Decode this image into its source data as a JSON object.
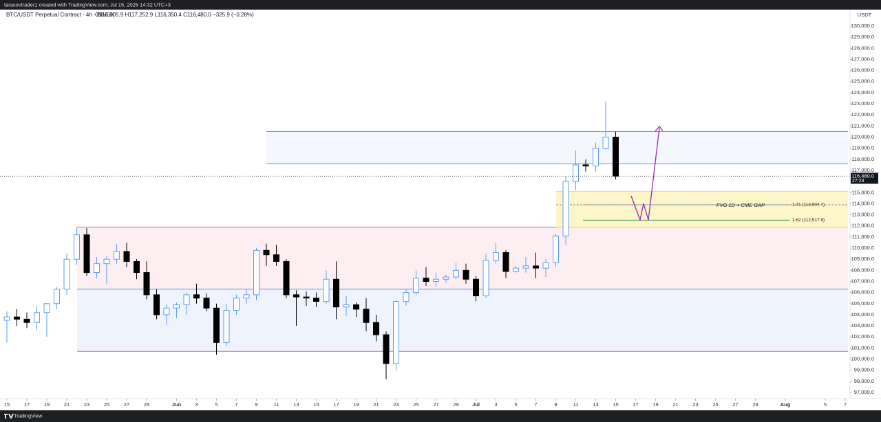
{
  "header": {
    "credit": "tarasovtrader1 created with TradingView.com, Jul 15, 2025 14:32 UTC+3",
    "brand": "TradingView"
  },
  "chart_data": {
    "type": "candlestick",
    "title": "BTC/USDT Perpetual Contract · 4h · BINGX",
    "subtitle": "O116,805.9 H117,252.9 L116,350.4 C116,480.0 −325.9 (−0.28%)",
    "y_unit": "USDT",
    "up_color": "#5b9cf6",
    "down_color": "#000000",
    "x": [
      "May 15",
      "May 16",
      "May 17",
      "May 18",
      "May 19",
      "May 20",
      "May 21",
      "May 22",
      "May 23",
      "May 24",
      "May 25",
      "May 26",
      "May 27",
      "May 28",
      "May 29",
      "May 30",
      "May 31",
      "Jun 1",
      "Jun 2",
      "Jun 3",
      "Jun 4",
      "Jun 5",
      "Jun 6",
      "Jun 7",
      "Jun 8",
      "Jun 9",
      "Jun 10",
      "Jun 11",
      "Jun 12",
      "Jun 13",
      "Jun 14",
      "Jun 15",
      "Jun 16",
      "Jun 17",
      "Jun 18",
      "Jun 19",
      "Jun 20",
      "Jun 21",
      "Jun 22",
      "Jun 23",
      "Jun 24",
      "Jun 25",
      "Jun 26",
      "Jun 27",
      "Jun 28",
      "Jun 29",
      "Jun 30",
      "Jul 1",
      "Jul 2",
      "Jul 3",
      "Jul 4",
      "Jul 5",
      "Jul 6",
      "Jul 7",
      "Jul 8",
      "Jul 9",
      "Jul 10",
      "Jul 11",
      "Jul 12",
      "Jul 13",
      "Jul 14",
      "Jul 15"
    ],
    "open": [
      103500,
      103800,
      103600,
      103300,
      104200,
      105000,
      106300,
      109000,
      111200,
      107800,
      108600,
      109000,
      109700,
      108800,
      107800,
      105800,
      104000,
      104600,
      104900,
      105800,
      105500,
      104600,
      101500,
      104400,
      105500,
      105800,
      109800,
      109400,
      108800,
      105800,
      105600,
      105500,
      105200,
      107200,
      104700,
      104900,
      104500,
      103300,
      102200,
      99600,
      105200,
      106000,
      107300,
      107000,
      107200,
      107400,
      108000,
      107200,
      105700,
      108900,
      109600,
      107900,
      108200,
      108400,
      108200,
      108700,
      111100,
      116000,
      117500,
      117400,
      119000,
      120000
    ],
    "high": [
      104300,
      104500,
      104200,
      104800,
      105000,
      106500,
      109500,
      111900,
      111800,
      109200,
      109300,
      110400,
      110500,
      109000,
      108800,
      106300,
      104900,
      105100,
      106000,
      106800,
      105900,
      105000,
      105000,
      105800,
      106300,
      110000,
      110400,
      110300,
      109000,
      106200,
      106100,
      106000,
      108000,
      108800,
      105700,
      105100,
      105500,
      104000,
      102500,
      105300,
      106300,
      108000,
      108300,
      107800,
      107600,
      108700,
      108600,
      107500,
      109500,
      110500,
      109800,
      108400,
      109200,
      109600,
      109000,
      111300,
      116500,
      118800,
      118000,
      119500,
      123200,
      120500
    ],
    "low": [
      101500,
      103000,
      102800,
      102600,
      102000,
      104500,
      105800,
      108500,
      107500,
      107300,
      106800,
      108600,
      108300,
      107200,
      105400,
      103600,
      103100,
      103700,
      104000,
      105000,
      104300,
      100400,
      101200,
      104000,
      105000,
      105300,
      108400,
      108400,
      105500,
      103000,
      104800,
      104700,
      105000,
      103600,
      103900,
      103800,
      102500,
      101600,
      98200,
      99000,
      104800,
      105800,
      106600,
      106500,
      106900,
      107200,
      106800,
      105200,
      105500,
      108600,
      107300,
      107800,
      107800,
      107300,
      107400,
      108300,
      110300,
      115200,
      116900,
      116900,
      118900,
      116200
    ],
    "close": [
      103800,
      103600,
      103300,
      104200,
      105000,
      106300,
      109000,
      111200,
      107800,
      108600,
      109000,
      109700,
      108800,
      107800,
      105800,
      104000,
      104600,
      104900,
      105800,
      105500,
      104600,
      101500,
      104400,
      105500,
      105800,
      109800,
      109400,
      108800,
      105800,
      105600,
      105500,
      105200,
      107200,
      104700,
      104900,
      104500,
      103300,
      102200,
      99600,
      105200,
      106000,
      107300,
      107000,
      107200,
      107400,
      108000,
      107200,
      105700,
      108900,
      109600,
      107900,
      108200,
      108400,
      108200,
      108700,
      111100,
      116000,
      117500,
      117400,
      119000,
      120000,
      116480
    ],
    "last_price": {
      "value": 116480,
      "label": "116,480.0"
    },
    "countdown": "27:23",
    "ylim": [
      96443,
      131486
    ],
    "yticks": [
      {
        "value": 97000,
        "label": "97,000.0"
      },
      {
        "value": 98000,
        "label": "98,000.0"
      },
      {
        "value": 99000,
        "label": "99,000.0"
      },
      {
        "value": 100000,
        "label": "100,000.0"
      },
      {
        "value": 101000,
        "label": "101,000.0"
      },
      {
        "value": 102000,
        "label": "102,000.0"
      },
      {
        "value": 103000,
        "label": "103,000.0"
      },
      {
        "value": 104000,
        "label": "104,000.0"
      },
      {
        "value": 105000,
        "label": "105,000.0"
      },
      {
        "value": 106000,
        "label": "106,000.0"
      },
      {
        "value": 107000,
        "label": "107,000.0"
      },
      {
        "value": 108000,
        "label": "108,000.0"
      },
      {
        "value": 109000,
        "label": "109,000.0"
      },
      {
        "value": 110000,
        "label": "110,000.0"
      },
      {
        "value": 111000,
        "label": "111,000.0"
      },
      {
        "value": 112000,
        "label": "112,000.0"
      },
      {
        "value": 113000,
        "label": "113,000.0"
      },
      {
        "value": 114000,
        "label": "114,000.0"
      },
      {
        "value": 115000,
        "label": "115,000.0"
      },
      {
        "value": 116000,
        "label": "116,000.0"
      },
      {
        "value": 117000,
        "label": "117,000.0"
      },
      {
        "value": 118000,
        "label": "118,000.0"
      },
      {
        "value": 119000,
        "label": "119,000.0"
      },
      {
        "value": 120000,
        "label": "120,000.0"
      },
      {
        "value": 121000,
        "label": "121,000.0"
      },
      {
        "value": 122000,
        "label": "122,000.0"
      },
      {
        "value": 123000,
        "label": "123,000.0"
      },
      {
        "value": 124000,
        "label": "124,000.0"
      },
      {
        "value": 125000,
        "label": "125,000.0"
      },
      {
        "value": 126000,
        "label": "126,000.0"
      },
      {
        "value": 127000,
        "label": "127,000.0"
      },
      {
        "value": 128000,
        "label": "128,000.0"
      },
      {
        "value": 129000,
        "label": "129,000.0"
      },
      {
        "value": 130000,
        "label": "130,000.0"
      }
    ],
    "xticks": [
      {
        "value": "May 15",
        "label": "15"
      },
      {
        "value": "May 17",
        "label": "17"
      },
      {
        "value": "May 19",
        "label": "19"
      },
      {
        "value": "May 21",
        "label": "21"
      },
      {
        "value": "May 23",
        "label": "23"
      },
      {
        "value": "May 25",
        "label": "25"
      },
      {
        "value": "May 27",
        "label": "27"
      },
      {
        "value": "May 29",
        "label": "29"
      },
      {
        "value": "Jun 1",
        "label": "Jun"
      },
      {
        "value": "Jun 3",
        "label": "3"
      },
      {
        "value": "Jun 5",
        "label": "5"
      },
      {
        "value": "Jun 7",
        "label": "7"
      },
      {
        "value": "Jun 9",
        "label": "9"
      },
      {
        "value": "Jun 11",
        "label": "11"
      },
      {
        "value": "Jun 13",
        "label": "13"
      },
      {
        "value": "Jun 15",
        "label": "15"
      },
      {
        "value": "Jun 17",
        "label": "17"
      },
      {
        "value": "Jun 19",
        "label": "19"
      },
      {
        "value": "Jun 21",
        "label": "21"
      },
      {
        "value": "Jun 23",
        "label": "23"
      },
      {
        "value": "Jun 25",
        "label": "25"
      },
      {
        "value": "Jun 27",
        "label": "27"
      },
      {
        "value": "Jun 29",
        "label": "29"
      },
      {
        "value": "Jul 1",
        "label": "Jul"
      },
      {
        "value": "Jul 3",
        "label": "3"
      },
      {
        "value": "Jul 5",
        "label": "5"
      },
      {
        "value": "Jul 7",
        "label": "7"
      },
      {
        "value": "Jul 9",
        "label": "9"
      },
      {
        "value": "Jul 11",
        "label": "11"
      },
      {
        "value": "Jul 13",
        "label": "13"
      },
      {
        "value": "Jul 15",
        "label": "15"
      },
      {
        "value": "Jul 17",
        "label": "17"
      },
      {
        "value": "Jul 19",
        "label": "19"
      },
      {
        "value": "Jul 21",
        "label": "21"
      },
      {
        "value": "Jul 23",
        "label": "23"
      },
      {
        "value": "Jul 25",
        "label": "25"
      },
      {
        "value": "Jul 27",
        "label": "27"
      },
      {
        "value": "Jul 29",
        "label": "29"
      },
      {
        "value": "Aug 1",
        "label": "Aug"
      },
      {
        "value": "Aug 5",
        "label": "5"
      },
      {
        "value": "Aug 7",
        "label": "7"
      }
    ],
    "zones": [
      {
        "top": 111900,
        "bottom": 106300,
        "fill": "#fdeef2",
        "top_color": "#e0609a"
      },
      {
        "top": 106300,
        "bottom": 100700,
        "fill": "#eef3fc",
        "top_color": "#6b8fd6",
        "bottom_color": "#e0609a"
      },
      {
        "top": 120500,
        "bottom": 117600,
        "fill": "#f4f7fd",
        "top_color": "#5a9a7a",
        "bottom_color": "#6b8fd6"
      },
      {
        "top": 115100,
        "bottom": 111900,
        "fill": "#fdf6c8",
        "top_color": "#f0d860",
        "bottom_color": "#f0d860"
      }
    ],
    "fib_levels": [
      {
        "value": 113904.4,
        "label": "1.41 (113,904.4)",
        "color": "#7b9fd6"
      },
      {
        "value": 112517.9,
        "label": "1.62 (112,517.9)",
        "color": "#3a9a5a"
      }
    ],
    "annotation": {
      "text": "FVG 1D + CME GAP",
      "value": 113904.4
    }
  }
}
